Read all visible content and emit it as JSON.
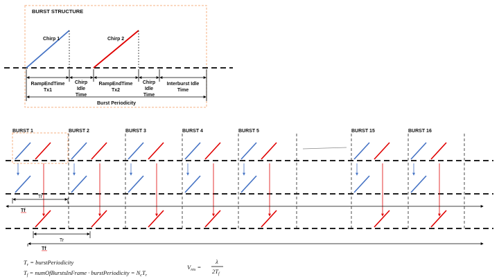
{
  "burst_structure": {
    "title": "BURST STRUCTURE",
    "chirp1": "Chirp 1",
    "chirp2": "Chirp 2",
    "segments": [
      {
        "line1": "RampEndTime",
        "line2": "Tx1",
        "line3": ""
      },
      {
        "line1": "Chirp",
        "line2": "Idle",
        "line3": "Time"
      },
      {
        "line1": "RampEndTime",
        "line2": "Tx2",
        "line3": ""
      },
      {
        "line1": "Chirp",
        "line2": "Idle",
        "line3": "Time"
      },
      {
        "line1": "Interburst Idle",
        "line2": "Time",
        "line3": ""
      }
    ],
    "period_label": "Burst Periodicity"
  },
  "frame": {
    "bursts": [
      "BURST 1",
      "BURST 2",
      "BURST 3",
      "BURST 4",
      "BURST 5",
      "BURST 15",
      "BURST 16"
    ],
    "tr_label": "Tr",
    "tf_label": "Tf",
    "tr_label_2": "Tr",
    "tf_label_2": "Tf"
  },
  "formulas": {
    "tr_lhs": "T",
    "tr_lhs_sub": "r",
    "tr_rhs": " = burstPeriodicity",
    "tf_lhs": "T",
    "tf_lhs_sub": "f",
    "tf_rhs": " = numOfBurstsInFrame · burstPeriodicity = N",
    "tf_rhs_sub1": "c",
    "tf_rhs_tail": "T",
    "tf_rhs_sub2": "r",
    "vres_lhs": "V",
    "vres_sub": "res",
    "vres_eq": " = ",
    "vres_num": "λ",
    "vres_den": "2T",
    "vres_den_sub": "f"
  },
  "colors": {
    "tx1": "#4472c4",
    "tx2": "#e00000",
    "box": "#f4b183",
    "line": "#000000"
  }
}
